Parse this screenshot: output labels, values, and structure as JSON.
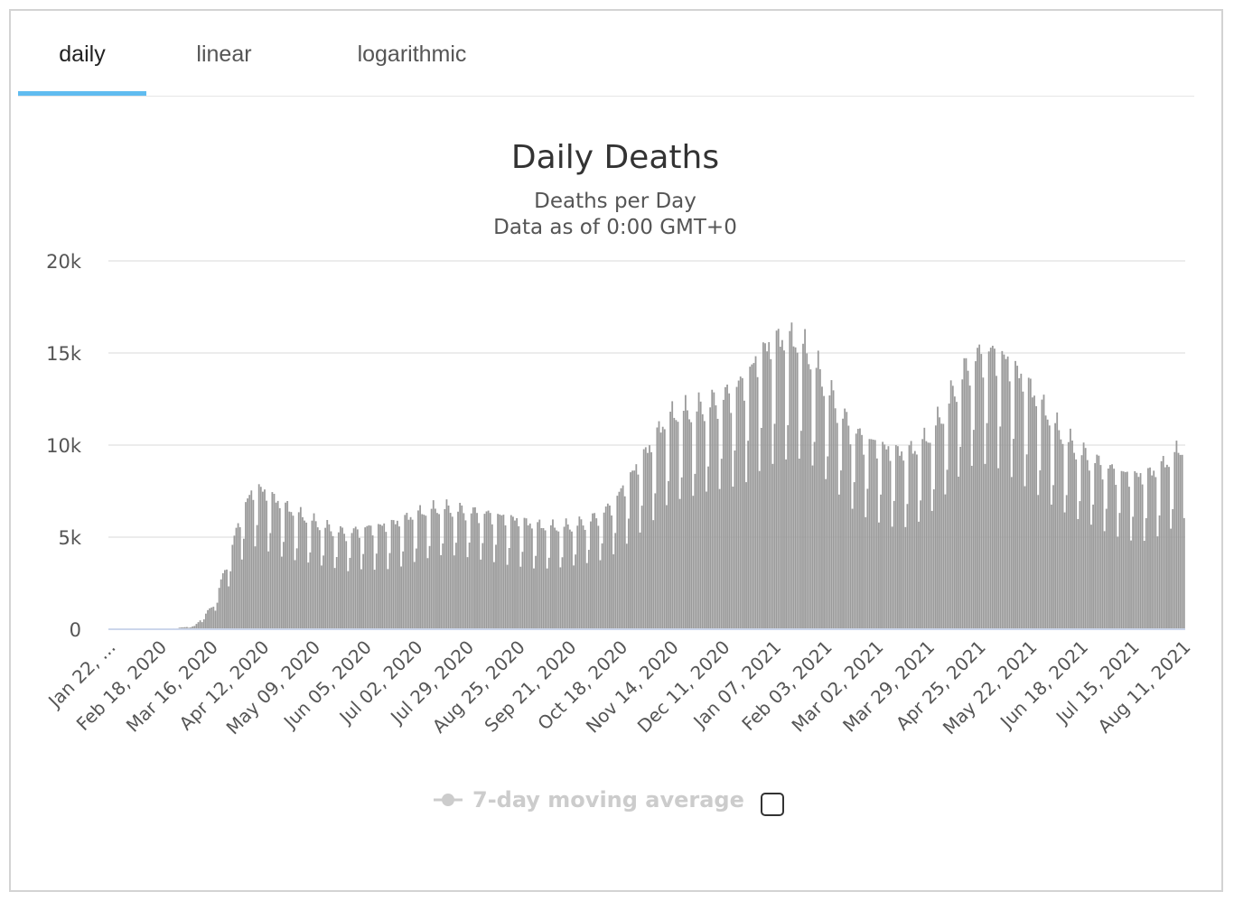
{
  "tabs": [
    {
      "label": "daily",
      "active": true
    },
    {
      "label": "linear",
      "active": false
    },
    {
      "label": "logarithmic",
      "active": false
    }
  ],
  "accent_color": "#60bcf0",
  "bar_color": "#9a9a9a",
  "chart_data": {
    "type": "bar",
    "title": "Daily Deaths",
    "subtitle_line1": "Deaths per Day",
    "subtitle_line2": "Data as of 0:00 GMT+0",
    "x_start_date": "2020-01-22",
    "x_end_date": "2021-08-11",
    "ylim": [
      0,
      20000
    ],
    "ytick_values": [
      0,
      5000,
      10000,
      15000,
      20000
    ],
    "ytick_labels": [
      "0",
      "5k",
      "10k",
      "15k",
      "20k"
    ],
    "xtick_labels": [
      "Jan 22, ...",
      "Feb 18, 2020",
      "Mar 16, 2020",
      "Apr 12, 2020",
      "May 09, 2020",
      "Jun 05, 2020",
      "Jul 02, 2020",
      "Jul 29, 2020",
      "Aug 25, 2020",
      "Sep 21, 2020",
      "Oct 18, 2020",
      "Nov 14, 2020",
      "Dec 11, 2020",
      "Jan 07, 2021",
      "Feb 03, 2021",
      "Mar 02, 2021",
      "Mar 29, 2021",
      "Apr 25, 2021",
      "May 22, 2021",
      "Jun 18, 2021",
      "Jul 15, 2021",
      "Aug 11, 2021"
    ],
    "weekly_average_anchors": [
      [
        0,
        0
      ],
      [
        30,
        10
      ],
      [
        45,
        150
      ],
      [
        55,
        1200
      ],
      [
        63,
        3500
      ],
      [
        70,
        5800
      ],
      [
        77,
        7000
      ],
      [
        84,
        6600
      ],
      [
        91,
        6100
      ],
      [
        98,
        5700
      ],
      [
        105,
        5400
      ],
      [
        112,
        5100
      ],
      [
        119,
        4900
      ],
      [
        126,
        4700
      ],
      [
        133,
        4950
      ],
      [
        140,
        5000
      ],
      [
        147,
        5100
      ],
      [
        154,
        5300
      ],
      [
        161,
        5600
      ],
      [
        168,
        5800
      ],
      [
        175,
        5950
      ],
      [
        182,
        5900
      ],
      [
        189,
        5800
      ],
      [
        196,
        5700
      ],
      [
        203,
        5600
      ],
      [
        210,
        5450
      ],
      [
        217,
        5300
      ],
      [
        224,
        5100
      ],
      [
        231,
        5000
      ],
      [
        238,
        5000
      ],
      [
        245,
        5100
      ],
      [
        252,
        5300
      ],
      [
        259,
        5600
      ],
      [
        266,
        6200
      ],
      [
        273,
        7200
      ],
      [
        280,
        8200
      ],
      [
        287,
        9200
      ],
      [
        294,
        10300
      ],
      [
        301,
        10600
      ],
      [
        308,
        10700
      ],
      [
        315,
        11000
      ],
      [
        322,
        11300
      ],
      [
        329,
        11700
      ],
      [
        336,
        12300
      ],
      [
        343,
        13400
      ],
      [
        350,
        14000
      ],
      [
        357,
        14200
      ],
      [
        364,
        14000
      ],
      [
        371,
        13200
      ],
      [
        378,
        12000
      ],
      [
        385,
        10800
      ],
      [
        392,
        9800
      ],
      [
        399,
        9300
      ],
      [
        406,
        9000
      ],
      [
        413,
        8700
      ],
      [
        420,
        8600
      ],
      [
        427,
        8900
      ],
      [
        434,
        9600
      ],
      [
        441,
        10800
      ],
      [
        448,
        12200
      ],
      [
        455,
        13200
      ],
      [
        462,
        13600
      ],
      [
        469,
        13500
      ],
      [
        476,
        12900
      ],
      [
        483,
        12100
      ],
      [
        490,
        11200
      ],
      [
        497,
        10200
      ],
      [
        504,
        9400
      ],
      [
        511,
        8800
      ],
      [
        518,
        8400
      ],
      [
        525,
        8000
      ],
      [
        532,
        7700
      ],
      [
        539,
        7500
      ],
      [
        546,
        7500
      ],
      [
        553,
        7800
      ],
      [
        560,
        8300
      ],
      [
        567,
        9000
      ],
      [
        573,
        9400
      ]
    ],
    "day_of_week_factors": [
      0.66,
      0.8,
      1.12,
      1.16,
      1.12,
      1.1,
      1.04
    ],
    "legend": [
      {
        "label": "7-day moving average",
        "enabled": false
      }
    ]
  }
}
